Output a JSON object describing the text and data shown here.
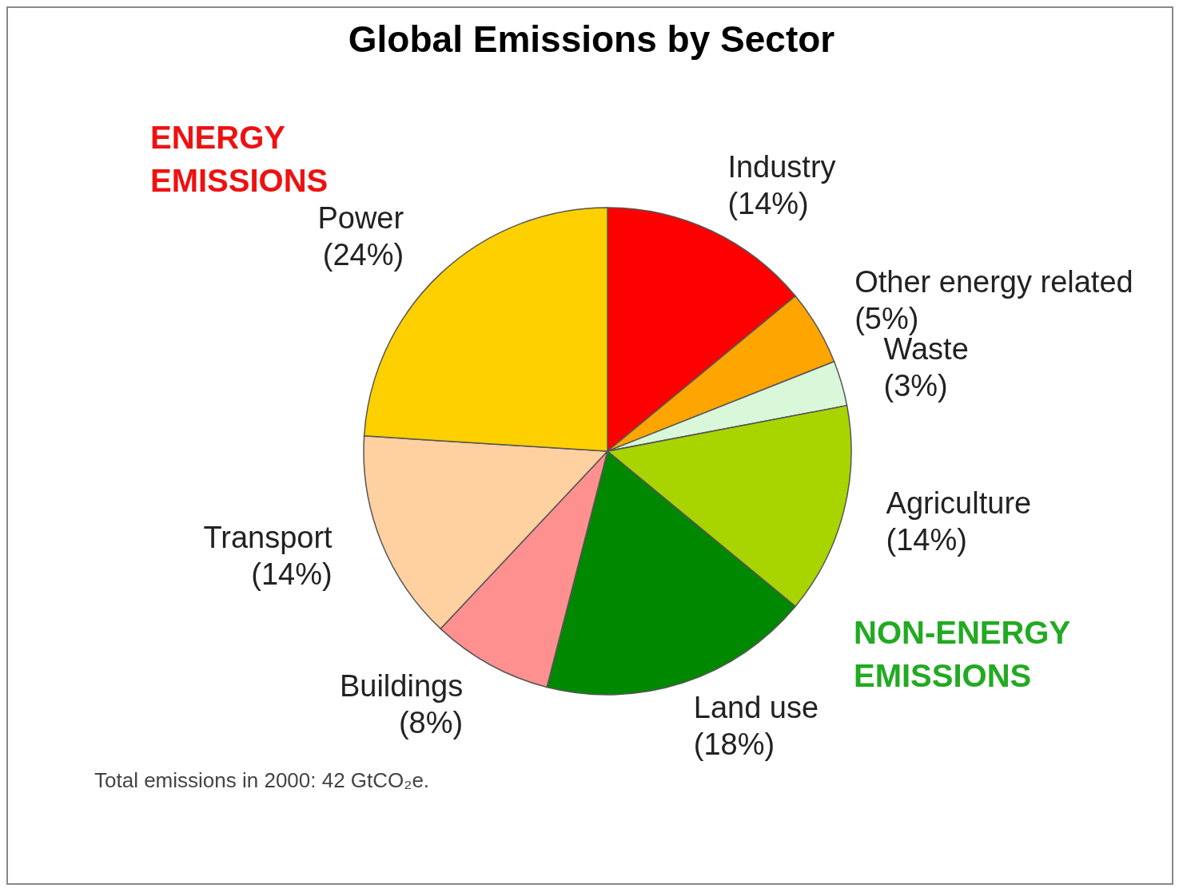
{
  "chart_data": {
    "type": "pie",
    "title": "Global Emissions by Sector",
    "categories": [
      "Industry",
      "Other energy related",
      "Waste",
      "Agriculture",
      "Land use",
      "Buildings",
      "Transport",
      "Power"
    ],
    "values": [
      14,
      5,
      3,
      14,
      18,
      8,
      14,
      24
    ],
    "value_labels": [
      "(14%)",
      "(5%)",
      "(3%)",
      "(14%)",
      "(18%)",
      "(8%)",
      "(14%)",
      "(24%)"
    ],
    "colors": [
      "#ff0000",
      "#ffa500",
      "#d9f7d9",
      "#a8d400",
      "#008800",
      "#ff9090",
      "#ffd0a0",
      "#ffd000"
    ],
    "annotations": [
      "ENERGY EMISSIONS",
      "NON-ENERGY EMISSIONS",
      "Total emissions in 2000: 42 GtCO₂e."
    ],
    "legend": false
  }
}
